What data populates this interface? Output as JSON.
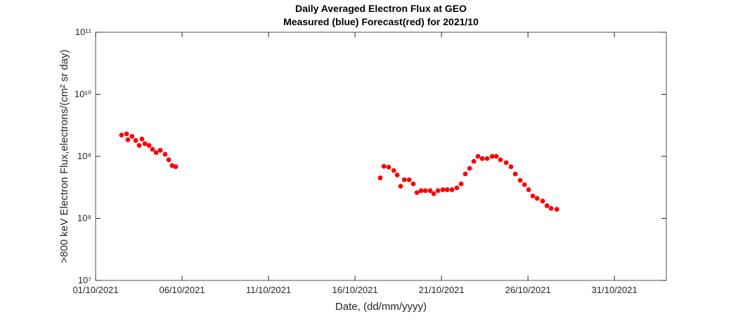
{
  "chart_data": {
    "type": "scatter",
    "title": "Daily Averaged Electron Flux at GEO",
    "subtitle": "Measured (blue) Forecast(red) for 2021/10",
    "x_label": "Date, (dd/mm/yyyy)",
    "y_label": ">800 keV Electron Flux,electrons/(cm² sr day)",
    "log_y": true,
    "xlim": [
      0,
      33
    ],
    "xticks": [
      {
        "value": 0,
        "label": "01/10/2021"
      },
      {
        "value": 5,
        "label": "06/10/2021"
      },
      {
        "value": 10,
        "label": "11/10/2021"
      },
      {
        "value": 15,
        "label": "16/10/2021"
      },
      {
        "value": 20,
        "label": "21/10/2021"
      },
      {
        "value": 25,
        "label": "26/10/2021"
      },
      {
        "value": 30,
        "label": "31/10/2021"
      }
    ],
    "ylim": [
      10000000,
      100000000000
    ],
    "yticks": [
      {
        "value": 10000000,
        "label": "10⁷"
      },
      {
        "value": 100000000,
        "label": "10⁸"
      },
      {
        "value": 1000000000,
        "label": "10⁹"
      },
      {
        "value": 10000000000,
        "label": "10¹⁰"
      },
      {
        "value": 100000000000,
        "label": "10¹¹"
      }
    ],
    "series": [
      {
        "color": "#ff0000",
        "x": [
          1.5,
          1.79,
          1.87,
          2.11,
          2.32,
          2.52,
          2.68,
          2.85,
          3.09,
          3.29,
          3.5,
          3.74,
          4.02,
          4.23,
          4.43,
          4.63,
          16.46,
          16.67,
          16.95,
          17.24,
          17.44,
          17.64,
          17.85,
          18.13,
          18.37,
          18.58,
          18.82,
          19.07,
          19.35,
          19.55,
          19.8,
          20.08,
          20.33,
          20.61,
          20.89,
          21.14,
          21.38,
          21.63,
          21.87,
          22.11,
          22.36,
          22.64,
          22.93,
          23.17,
          23.41,
          23.74,
          24.02,
          24.27,
          24.55,
          24.8,
          25.04,
          25.28,
          25.53,
          25.85,
          26.1,
          26.34,
          26.67
        ],
        "values": [
          2200000000,
          2300000000,
          1850000000,
          2100000000,
          1800000000,
          1500000000,
          1900000000,
          1600000000,
          1500000000,
          1300000000,
          1150000000,
          1250000000,
          1080000000,
          880000000,
          710000000,
          680000000,
          450000000,
          690000000,
          670000000,
          590000000,
          500000000,
          330000000,
          420000000,
          420000000,
          360000000,
          260000000,
          280000000,
          280000000,
          280000000,
          250000000,
          280000000,
          290000000,
          290000000,
          290000000,
          310000000,
          360000000,
          520000000,
          640000000,
          830000000,
          1000000000,
          920000000,
          920000000,
          1000000000,
          1000000000,
          880000000,
          790000000,
          680000000,
          520000000,
          410000000,
          350000000,
          290000000,
          230000000,
          210000000,
          190000000,
          160000000,
          145000000,
          140000000
        ]
      }
    ]
  }
}
